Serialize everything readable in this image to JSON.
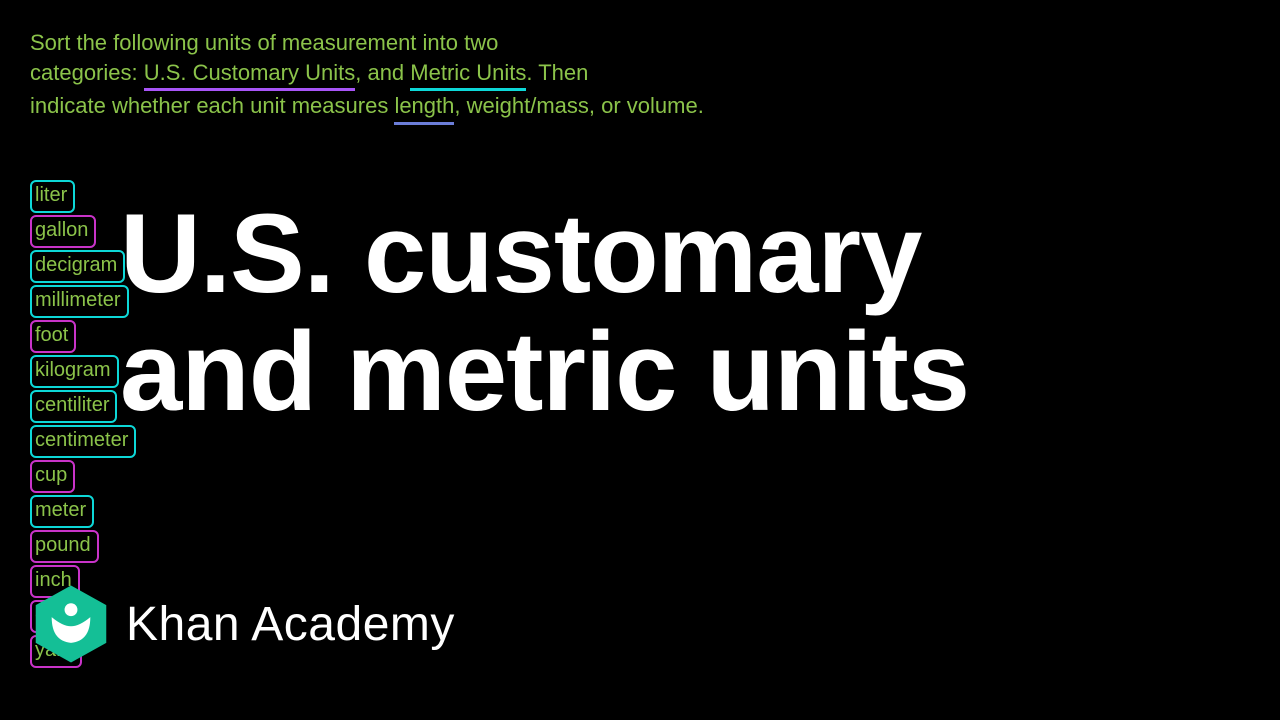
{
  "colors": {
    "background": "#000000",
    "instruction_text": "#8bc34a",
    "unit_text": "#8bc34a",
    "title_text": "#ffffff",
    "khan_text": "#ffffff",
    "khan_hex": "#14bf96",
    "khan_leaf": "#ffffff",
    "underline_purple": "#a855f7",
    "underline_teal": "#0dd8d8",
    "underline_blue": "#6b7dd8",
    "box_teal": "#0dd8d8",
    "box_magenta": "#c933c9"
  },
  "instruction": {
    "part1": "Sort the following units of measurement into two",
    "part2a": "categories: ",
    "us_customary": "U.S. Customary Units",
    "part2b": ", and ",
    "metric_units": "Metric Units",
    "part2c": ". Then",
    "part3a": "indicate whether each unit measures ",
    "length": "length",
    "part3b": ", weight/mass, or volume."
  },
  "units": [
    {
      "label": "liter",
      "border": "#0dd8d8"
    },
    {
      "label": "gallon",
      "border": "#c933c9"
    },
    {
      "label": "decigram",
      "border": "#0dd8d8"
    },
    {
      "label": "millimeter",
      "border": "#0dd8d8"
    },
    {
      "label": "foot",
      "border": "#c933c9"
    },
    {
      "label": "kilogram",
      "border": "#0dd8d8"
    },
    {
      "label": "centiliter",
      "border": "#0dd8d8"
    },
    {
      "label": "centimeter",
      "border": "#0dd8d8"
    },
    {
      "label": "cup",
      "border": "#c933c9"
    },
    {
      "label": "meter",
      "border": "#0dd8d8"
    },
    {
      "label": "pound",
      "border": "#c933c9"
    },
    {
      "label": "inch",
      "border": "#c933c9"
    },
    {
      "label": "ounce",
      "border": "#c933c9"
    },
    {
      "label": "yard",
      "border": "#c933c9"
    }
  ],
  "title": {
    "line1": "U.S. customary",
    "line2": "and metric units"
  },
  "khan": {
    "label": "Khan Academy"
  },
  "typography": {
    "instruction_fontsize": 22,
    "unit_fontsize": 20,
    "title_fontsize": 112,
    "khan_fontsize": 48
  }
}
